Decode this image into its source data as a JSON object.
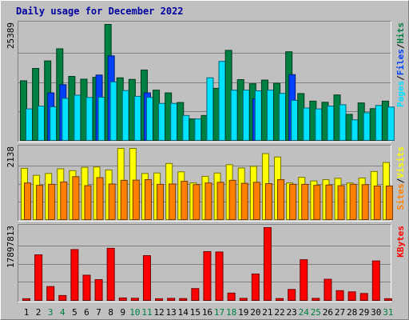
{
  "chart_data": {
    "type": "bar",
    "title": "Daily usage for December 2022",
    "colors": {
      "background": "#c0c0c0",
      "title": "#0000a0",
      "hits": "#008040",
      "files": "#0040ff",
      "pages": "#00e0ff",
      "visits": "#ffff00",
      "sites": "#ff8000",
      "kbytes": "#ff0000",
      "weekend_label": "#008040"
    },
    "categories": [
      "1",
      "2",
      "3",
      "4",
      "5",
      "6",
      "7",
      "8",
      "9",
      "10",
      "11",
      "12",
      "13",
      "14",
      "15",
      "16",
      "17",
      "18",
      "19",
      "20",
      "21",
      "22",
      "23",
      "24",
      "25",
      "26",
      "27",
      "28",
      "29",
      "30",
      "31"
    ],
    "weekend_days": [
      "3",
      "4",
      "10",
      "11",
      "17",
      "18",
      "24",
      "25",
      "31"
    ],
    "panels": [
      {
        "id": "hits",
        "max_label": "25389",
        "ymax": 25389,
        "legend": [
          "Pages",
          "Files",
          "Hits"
        ],
        "series": [
          {
            "name": "Hits",
            "values": [
              13050,
              15750,
              17400,
              20050,
              14000,
              13400,
              13800,
              25389,
              13700,
              13350,
              15400,
              11000,
              10400,
              8300,
              4700,
              5450,
              11400,
              19700,
              13300,
              12400,
              13200,
              12500,
              19400,
              10250,
              8600,
              8350,
              9950,
              5700,
              8200,
              6950,
              8600
            ]
          },
          {
            "name": "Files",
            "values": [
              0,
              0,
              10400,
              12200,
              0,
              0,
              14300,
              18500,
              0,
              0,
              10400,
              0,
              0,
              0,
              0,
              0,
              0,
              0,
              0,
              9100,
              0,
              0,
              14400,
              0,
              0,
              0,
              0,
              0,
              0,
              0,
              0
            ]
          },
          {
            "name": "Pages",
            "values": [
              6900,
              7500,
              7350,
              9200,
              9900,
              9400,
              9450,
              12800,
              10900,
              9650,
              9400,
              8100,
              8100,
              5450,
              4700,
              13700,
              17300,
              11000,
              11000,
              10850,
              11000,
              10300,
              8750,
              7100,
              6900,
              7500,
              7800,
              4500,
              6050,
              7650,
              7300
            ]
          }
        ]
      },
      {
        "id": "visits",
        "max_label": "2138",
        "ymax": 2138,
        "legend": [
          "Sites",
          "Visits"
        ],
        "series": [
          {
            "name": "Visits",
            "values": [
              1540,
              1330,
              1385,
              1525,
              1470,
              1570,
              1580,
              1490,
              2138,
              2138,
              1385,
              1400,
              1685,
              1435,
              1100,
              1300,
              1400,
              1650,
              1550,
              1600,
              1980,
              1880,
              1100,
              1270,
              1160,
              1200,
              1240,
              1100,
              1250,
              1445,
              1715
            ]
          },
          {
            "name": "Sites",
            "values": [
              1100,
              1030,
              1060,
              1130,
              1290,
              1020,
              1260,
              1070,
              1180,
              1185,
              1200,
              1060,
              1070,
              1150,
              1050,
              1100,
              1120,
              1180,
              1090,
              1120,
              1080,
              1200,
              1060,
              1060,
              1030,
              1040,
              1020,
              1060,
              1050,
              1010,
              1010
            ]
          }
        ]
      },
      {
        "id": "kbytes",
        "max_label": "17897813",
        "ymax": 17897813,
        "legend": [
          "KBytes"
        ],
        "series": [
          {
            "name": "KBytes",
            "values": [
              420000,
              11200000,
              3400000,
              1200000,
              12500000,
              6200000,
              5100000,
              12800000,
              600000,
              520000,
              11000000,
              420000,
              500000,
              450000,
              2900000,
              12000000,
              11900000,
              1800000,
              500000,
              6500000,
              17897813,
              450000,
              2700000,
              10000000,
              500000,
              5200000,
              2400000,
              2100000,
              1700000,
              9700000,
              420000
            ]
          }
        ]
      }
    ]
  }
}
